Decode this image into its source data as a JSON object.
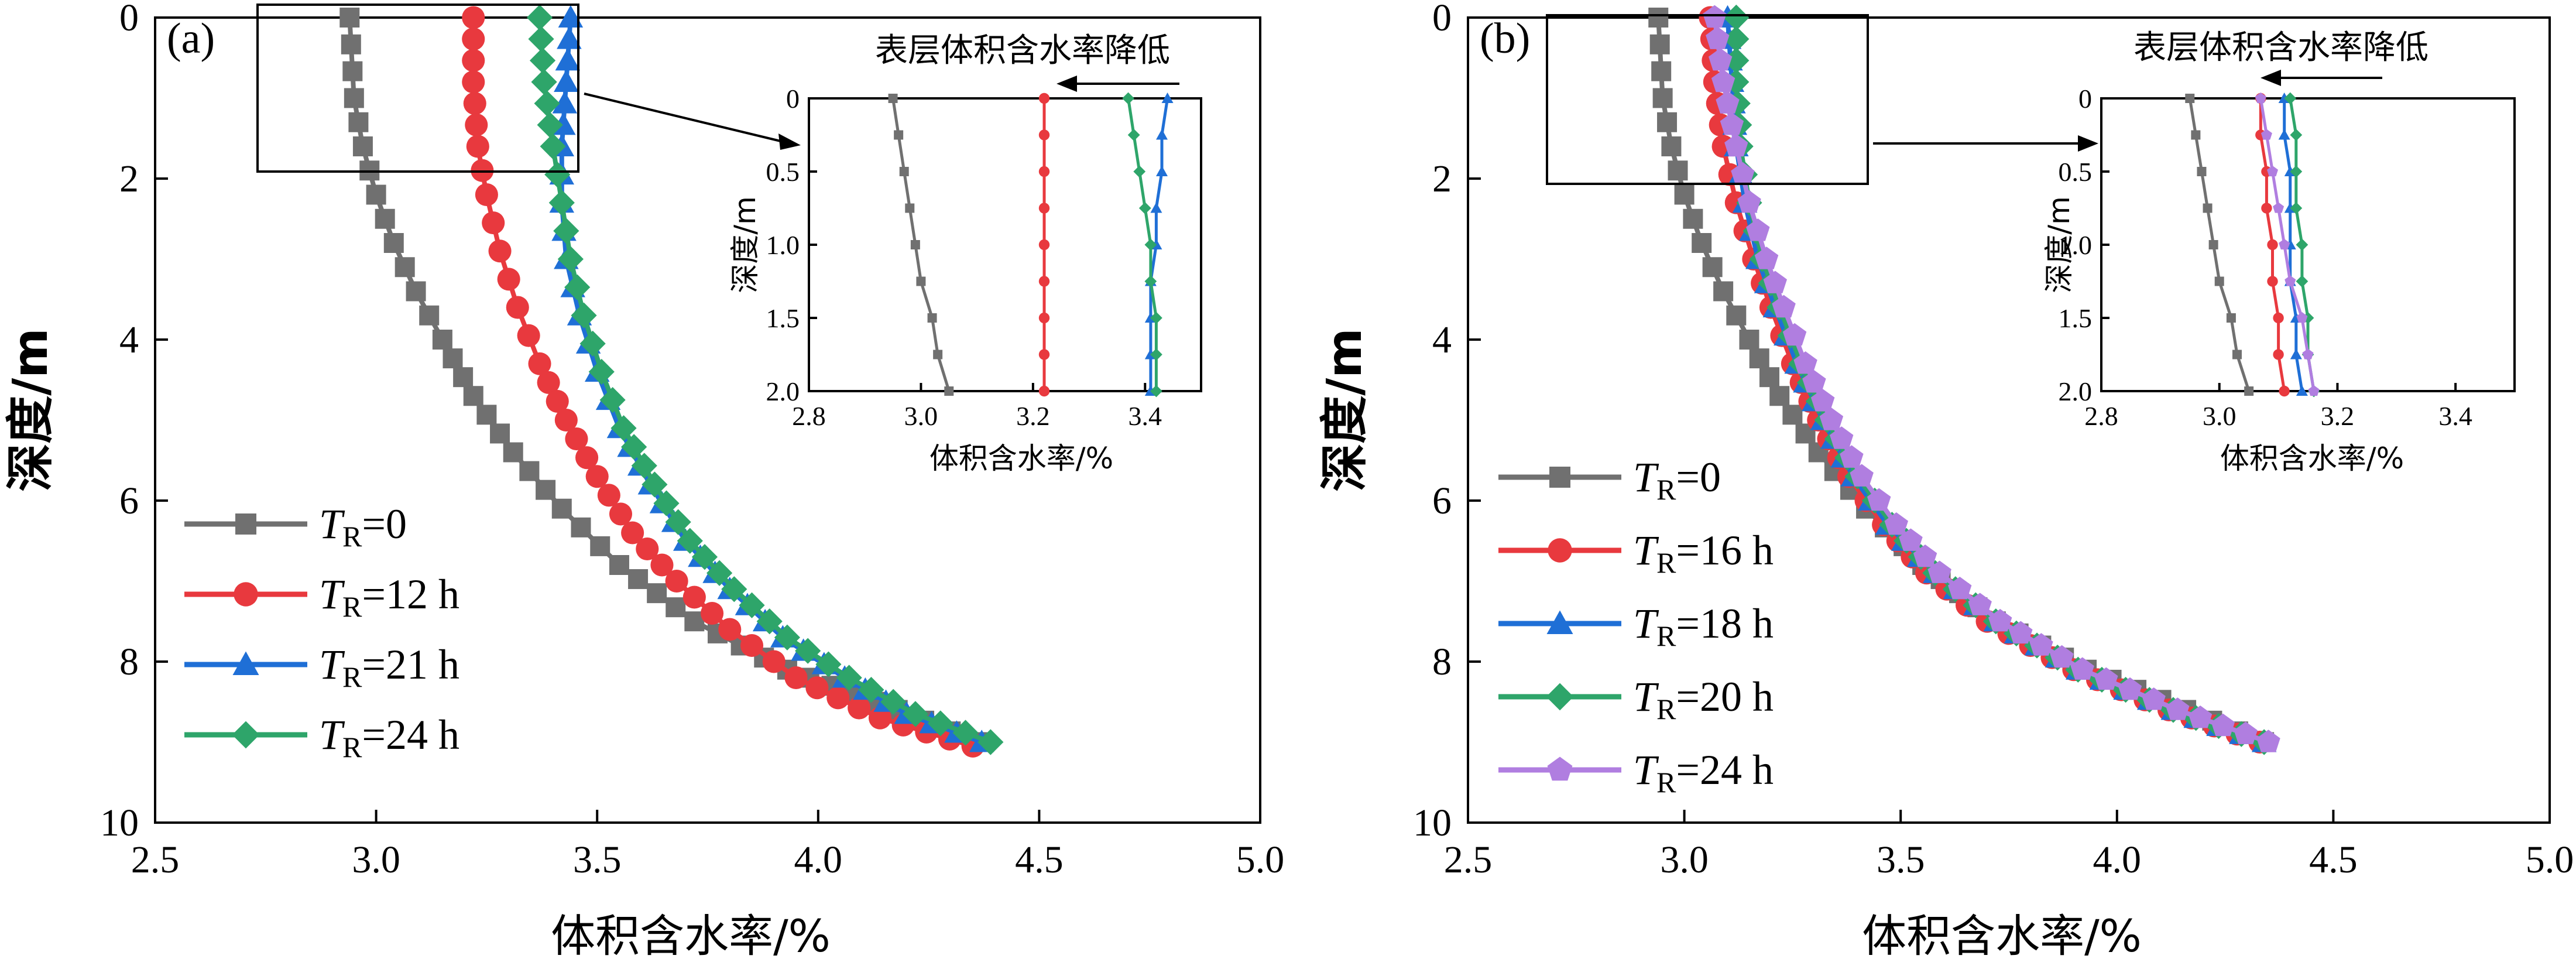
{
  "figure": {
    "colors": {
      "gray": "#707070",
      "red": "#e8393e",
      "blue": "#1f6fd6",
      "green": "#2ea56a",
      "purple": "#b07ee0"
    }
  },
  "chart_data": [
    {
      "type": "line",
      "panel_label": "(a)",
      "xlabel": "体积含水率/%",
      "ylabel": "深度/m",
      "xlim": [
        2.5,
        5.0
      ],
      "ylim": [
        10,
        0
      ],
      "y_inverted": true,
      "xticks": [
        "2.5",
        "3.0",
        "3.5",
        "4.0",
        "4.5",
        "5.0"
      ],
      "yticks": [
        "0",
        "2",
        "4",
        "6",
        "8",
        "10"
      ],
      "legend_position": "lower-left",
      "series": [
        {
          "name": "TR=0",
          "legend_main": "T",
          "legend_sub": "R",
          "legend_rest": "=0",
          "color": "#707070",
          "marker": "square",
          "x": [
            2.94,
            2.95,
            2.97,
            3.0,
            3.04,
            3.09,
            3.15,
            3.22,
            3.31,
            3.42,
            3.55,
            3.72,
            3.93,
            4.18,
            4.36
          ],
          "y": [
            0,
            1.0,
            1.6,
            2.2,
            2.8,
            3.4,
            4.0,
            4.7,
            5.4,
            6.1,
            6.8,
            7.5,
            8.1,
            8.6,
            9.0
          ]
        },
        {
          "name": "TR=12 h",
          "legend_main": "T",
          "legend_sub": "R",
          "legend_rest": "=12 h",
          "color": "#e8393e",
          "marker": "circle",
          "x": [
            3.22,
            3.22,
            3.23,
            3.25,
            3.28,
            3.32,
            3.37,
            3.43,
            3.5,
            3.58,
            3.68,
            3.8,
            3.95,
            4.14,
            4.35
          ],
          "y": [
            0,
            0.8,
            1.6,
            2.2,
            2.9,
            3.6,
            4.3,
            5.0,
            5.7,
            6.4,
            7.0,
            7.6,
            8.2,
            8.7,
            9.05
          ]
        },
        {
          "name": "TR=21 h",
          "legend_main": "T",
          "legend_sub": "R",
          "legend_rest": "=21 h",
          "color": "#1f6fd6",
          "marker": "triangle",
          "x": [
            3.44,
            3.43,
            3.42,
            3.42,
            3.43,
            3.46,
            3.5,
            3.55,
            3.62,
            3.7,
            3.8,
            3.92,
            4.06,
            4.2,
            4.37
          ],
          "y": [
            0,
            0.8,
            1.6,
            2.3,
            3.0,
            3.7,
            4.4,
            5.1,
            5.8,
            6.5,
            7.1,
            7.7,
            8.2,
            8.65,
            9.0
          ]
        },
        {
          "name": "TR=24 h",
          "legend_main": "T",
          "legend_sub": "R",
          "legend_rest": "=24 h",
          "color": "#2ea56a",
          "marker": "diamond",
          "x": [
            3.37,
            3.38,
            3.4,
            3.42,
            3.44,
            3.47,
            3.51,
            3.56,
            3.63,
            3.71,
            3.81,
            3.93,
            4.07,
            4.22,
            4.39
          ],
          "y": [
            0,
            0.8,
            1.6,
            2.3,
            3.0,
            3.7,
            4.4,
            5.1,
            5.8,
            6.5,
            7.1,
            7.7,
            8.2,
            8.65,
            9.0
          ]
        }
      ],
      "inset": {
        "xlabel": "体积含水率/%",
        "ylabel": "深度/m",
        "xlim": [
          2.8,
          3.5
        ],
        "ylim": [
          2.0,
          0
        ],
        "xticks": [
          "2.8",
          "3.0",
          "3.2",
          "3.4"
        ],
        "yticks": [
          "0",
          "0.5",
          "1.0",
          "1.5",
          "2.0"
        ],
        "series": [
          {
            "color": "#707070",
            "marker": "square",
            "x": [
              2.95,
              2.96,
              2.97,
              2.98,
              2.99,
              3.0,
              3.02,
              3.03,
              3.05
            ],
            "y": [
              0,
              0.25,
              0.5,
              0.75,
              1.0,
              1.25,
              1.5,
              1.75,
              2.0
            ]
          },
          {
            "color": "#e8393e",
            "marker": "circle",
            "x": [
              3.22,
              3.22,
              3.22,
              3.22,
              3.22,
              3.22,
              3.22,
              3.22,
              3.22
            ],
            "y": [
              0,
              0.25,
              0.5,
              0.75,
              1.0,
              1.25,
              1.5,
              1.75,
              2.0
            ]
          },
          {
            "color": "#1f6fd6",
            "marker": "triangle",
            "x": [
              3.44,
              3.43,
              3.43,
              3.42,
              3.42,
              3.41,
              3.41,
              3.41,
              3.41
            ],
            "y": [
              0,
              0.25,
              0.5,
              0.75,
              1.0,
              1.25,
              1.5,
              1.75,
              2.0
            ]
          },
          {
            "color": "#2ea56a",
            "marker": "diamond",
            "x": [
              3.37,
              3.38,
              3.39,
              3.4,
              3.41,
              3.41,
              3.42,
              3.42,
              3.42
            ],
            "y": [
              0,
              0.25,
              0.5,
              0.75,
              1.0,
              1.25,
              1.5,
              1.75,
              2.0
            ]
          }
        ]
      },
      "zoom_box_range": {
        "x": [
          2.75,
          3.5
        ],
        "y": [
          0,
          1.9
        ]
      },
      "annotation": "表层体积含水率降低"
    },
    {
      "type": "line",
      "panel_label": "(b)",
      "xlabel": "体积含水率/%",
      "ylabel": "深度/m",
      "xlim": [
        2.5,
        5.0
      ],
      "ylim": [
        10,
        0
      ],
      "y_inverted": true,
      "xticks": [
        "2.5",
        "3.0",
        "3.5",
        "4.0",
        "4.5",
        "5.0"
      ],
      "yticks": [
        "0",
        "2",
        "4",
        "6",
        "8",
        "10"
      ],
      "legend_position": "lower-left",
      "series": [
        {
          "name": "TR=0",
          "legend_main": "T",
          "legend_sub": "R",
          "legend_rest": "=0",
          "color": "#707070",
          "marker": "square",
          "x": [
            2.94,
            2.95,
            2.97,
            3.0,
            3.04,
            3.09,
            3.15,
            3.22,
            3.31,
            3.42,
            3.55,
            3.72,
            3.93,
            4.16,
            4.34
          ],
          "y": [
            0,
            1.0,
            1.6,
            2.2,
            2.8,
            3.4,
            4.0,
            4.7,
            5.4,
            6.1,
            6.8,
            7.5,
            8.1,
            8.6,
            9.0
          ]
        },
        {
          "name": "TR=16 h",
          "legend_main": "T",
          "legend_sub": "R",
          "legend_rest": "=16 h",
          "color": "#e8393e",
          "marker": "circle",
          "x": [
            3.06,
            3.07,
            3.09,
            3.12,
            3.16,
            3.2,
            3.25,
            3.31,
            3.38,
            3.46,
            3.56,
            3.7,
            3.9,
            4.12,
            4.33
          ],
          "y": [
            0,
            0.8,
            1.6,
            2.3,
            3.0,
            3.6,
            4.3,
            5.0,
            5.7,
            6.3,
            6.9,
            7.5,
            8.1,
            8.6,
            9.0
          ]
        },
        {
          "name": "TR=18 h",
          "legend_main": "T",
          "legend_sub": "R",
          "legend_rest": "=18 h",
          "color": "#1f6fd6",
          "marker": "triangle",
          "x": [
            3.1,
            3.11,
            3.12,
            3.14,
            3.17,
            3.21,
            3.26,
            3.32,
            3.39,
            3.47,
            3.58,
            3.72,
            3.91,
            4.13,
            4.34
          ],
          "y": [
            0,
            0.8,
            1.6,
            2.3,
            3.0,
            3.6,
            4.3,
            5.0,
            5.7,
            6.3,
            6.9,
            7.5,
            8.1,
            8.6,
            9.0
          ]
        },
        {
          "name": "TR=20 h",
          "legend_main": "T",
          "legend_sub": "R",
          "legend_rest": "=20 h",
          "color": "#2ea56a",
          "marker": "diamond",
          "x": [
            3.12,
            3.12,
            3.13,
            3.15,
            3.18,
            3.22,
            3.27,
            3.33,
            3.4,
            3.48,
            3.58,
            3.72,
            3.91,
            4.13,
            4.34
          ],
          "y": [
            0,
            0.8,
            1.6,
            2.3,
            3.0,
            3.6,
            4.3,
            5.0,
            5.7,
            6.3,
            6.9,
            7.5,
            8.1,
            8.6,
            9.0
          ]
        },
        {
          "name": "TR=24 h",
          "legend_main": "T",
          "legend_sub": "R",
          "legend_rest": "=24 h",
          "color": "#b07ee0",
          "marker": "pentagon",
          "x": [
            3.07,
            3.09,
            3.12,
            3.15,
            3.19,
            3.23,
            3.28,
            3.34,
            3.41,
            3.49,
            3.59,
            3.73,
            3.92,
            4.14,
            4.35
          ],
          "y": [
            0,
            0.8,
            1.6,
            2.3,
            3.0,
            3.6,
            4.3,
            5.0,
            5.7,
            6.3,
            6.9,
            7.5,
            8.1,
            8.6,
            9.0
          ]
        }
      ],
      "inset": {
        "xlabel": "体积含水率/%",
        "ylabel": "深度/m",
        "xlim": [
          2.8,
          3.5
        ],
        "ylim": [
          2.0,
          0
        ],
        "xticks": [
          "2.8",
          "3.0",
          "3.2",
          "3.4"
        ],
        "yticks": [
          "0",
          "0.5",
          "1.0",
          "1.5",
          "2.0"
        ],
        "series": [
          {
            "color": "#707070",
            "marker": "square",
            "x": [
              2.95,
              2.96,
              2.97,
              2.98,
              2.99,
              3.0,
              3.02,
              3.03,
              3.05
            ],
            "y": [
              0,
              0.25,
              0.5,
              0.75,
              1.0,
              1.25,
              1.5,
              1.75,
              2.0
            ]
          },
          {
            "color": "#e8393e",
            "marker": "circle",
            "x": [
              3.07,
              3.07,
              3.08,
              3.08,
              3.09,
              3.09,
              3.1,
              3.1,
              3.11
            ],
            "y": [
              0,
              0.25,
              0.5,
              0.75,
              1.0,
              1.25,
              1.5,
              1.75,
              2.0
            ]
          },
          {
            "color": "#1f6fd6",
            "marker": "triangle",
            "x": [
              3.11,
              3.11,
              3.12,
              3.12,
              3.12,
              3.12,
              3.13,
              3.13,
              3.14
            ],
            "y": [
              0,
              0.25,
              0.5,
              0.75,
              1.0,
              1.25,
              1.5,
              1.75,
              2.0
            ]
          },
          {
            "color": "#2ea56a",
            "marker": "diamond",
            "x": [
              3.12,
              3.13,
              3.13,
              3.13,
              3.14,
              3.14,
              3.15,
              3.15,
              3.16
            ],
            "y": [
              0,
              0.25,
              0.5,
              0.75,
              1.0,
              1.25,
              1.5,
              1.75,
              2.0
            ]
          },
          {
            "color": "#b07ee0",
            "marker": "pentagon",
            "x": [
              3.07,
              3.08,
              3.09,
              3.1,
              3.11,
              3.12,
              3.14,
              3.15,
              3.16
            ],
            "y": [
              0,
              0.25,
              0.5,
              0.75,
              1.0,
              1.25,
              1.5,
              1.75,
              2.0
            ]
          }
        ]
      },
      "zoom_box_range": {
        "x": [
          2.7,
          3.45
        ],
        "y": [
          0,
          2.1
        ]
      },
      "annotation": "表层体积含水率降低"
    }
  ]
}
